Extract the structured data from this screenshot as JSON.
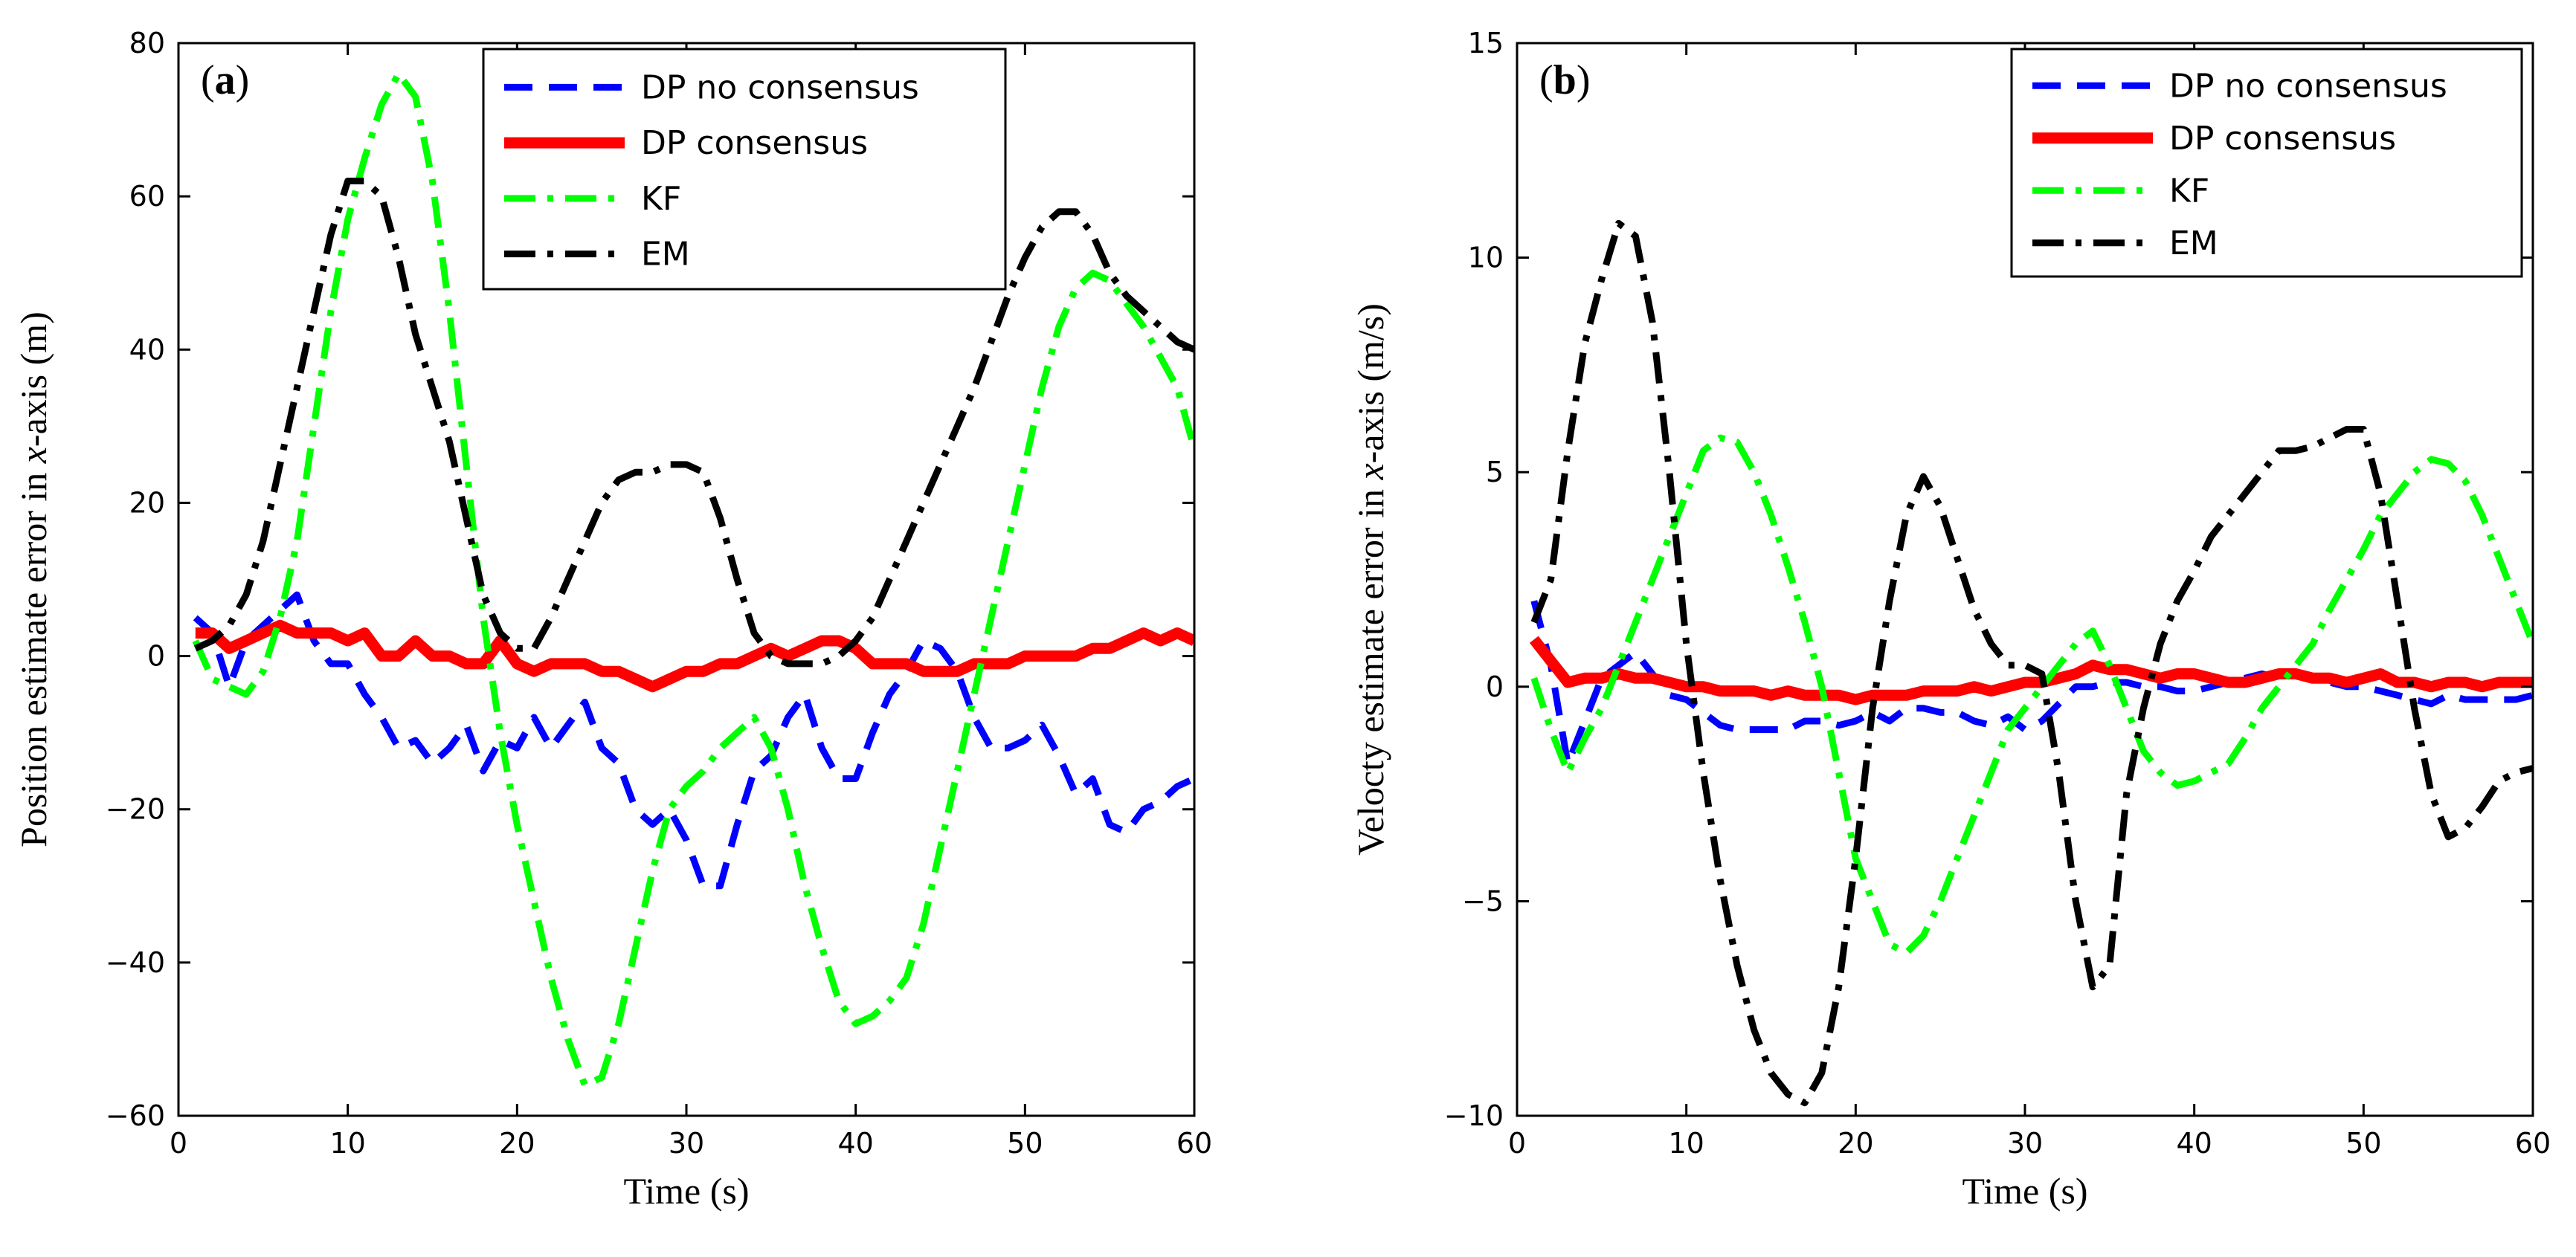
{
  "chart_data": [
    {
      "type": "line",
      "panel_label_prefix": "(",
      "panel_label_letter": "a",
      "panel_label_suffix": ")",
      "xlabel": "Time (s)",
      "ylabel_before": "Position estimate error in ",
      "ylabel_var": "x",
      "ylabel_after": "-axis (m)",
      "xlim": [
        0,
        60
      ],
      "ylim": [
        -60,
        80
      ],
      "xticks": [
        0,
        10,
        20,
        30,
        40,
        50,
        60
      ],
      "yticks": [
        -60,
        -40,
        -20,
        0,
        20,
        40,
        60,
        80
      ],
      "grid": false,
      "legend_position": "top-right",
      "series": [
        {
          "name": "DP no consensus",
          "color": "#0000ff",
          "style": "dashed",
          "x": [
            1,
            2,
            3,
            4,
            5,
            6,
            7,
            8,
            9,
            10,
            11,
            12,
            13,
            14,
            15,
            16,
            17,
            18,
            19,
            20,
            21,
            22,
            23,
            24,
            25,
            26,
            27,
            28,
            29,
            30,
            31,
            32,
            33,
            34,
            35,
            36,
            37,
            38,
            39,
            40,
            41,
            42,
            43,
            44,
            45,
            46,
            47,
            48,
            49,
            50,
            51,
            52,
            53,
            54,
            55,
            56,
            57,
            58,
            59,
            60
          ],
          "values": [
            5,
            3,
            -4,
            2,
            4,
            6,
            8,
            2,
            -1,
            -1,
            -5,
            -8,
            -12,
            -11,
            -14,
            -12,
            -9,
            -15,
            -11,
            -12,
            -8,
            -12,
            -9,
            -6,
            -12,
            -14,
            -20,
            -22,
            -20,
            -24,
            -30,
            -30,
            -22,
            -15,
            -13,
            -8,
            -5,
            -12,
            -16,
            -16,
            -10,
            -5,
            -2,
            2,
            1,
            -2,
            -8,
            -12,
            -12,
            -11,
            -9,
            -13,
            -18,
            -16,
            -22,
            -23,
            -20,
            -19,
            -17,
            -16
          ]
        },
        {
          "name": "DP consensus",
          "color": "#ff0000",
          "style": "solid",
          "x": [
            1,
            2,
            3,
            4,
            5,
            6,
            7,
            8,
            9,
            10,
            11,
            12,
            13,
            14,
            15,
            16,
            17,
            18,
            19,
            20,
            21,
            22,
            23,
            24,
            25,
            26,
            27,
            28,
            29,
            30,
            31,
            32,
            33,
            34,
            35,
            36,
            37,
            38,
            39,
            40,
            41,
            42,
            43,
            44,
            45,
            46,
            47,
            48,
            49,
            50,
            51,
            52,
            53,
            54,
            55,
            56,
            57,
            58,
            59,
            60
          ],
          "values": [
            3,
            3,
            1,
            2,
            3,
            4,
            3,
            3,
            3,
            2,
            3,
            0,
            0,
            2,
            0,
            0,
            -1,
            -1,
            2,
            -1,
            -2,
            -1,
            -1,
            -1,
            -2,
            -2,
            -3,
            -4,
            -3,
            -2,
            -2,
            -1,
            -1,
            0,
            1,
            0,
            1,
            2,
            2,
            1,
            -1,
            -1,
            -1,
            -2,
            -2,
            -2,
            -1,
            -1,
            -1,
            0,
            0,
            0,
            0,
            1,
            1,
            2,
            3,
            2,
            3,
            2
          ]
        },
        {
          "name": "KF",
          "color": "#00ff00",
          "style": "dashdot",
          "x": [
            1,
            2,
            3,
            4,
            5,
            6,
            7,
            8,
            9,
            10,
            11,
            12,
            13,
            14,
            15,
            16,
            17,
            18,
            19,
            20,
            21,
            22,
            23,
            24,
            25,
            26,
            27,
            28,
            29,
            30,
            31,
            32,
            33,
            34,
            35,
            36,
            37,
            38,
            39,
            40,
            41,
            42,
            43,
            44,
            45,
            46,
            47,
            48,
            49,
            50,
            51,
            52,
            53,
            54,
            55,
            56,
            57,
            58,
            59,
            60
          ],
          "values": [
            2,
            -3,
            -4,
            -5,
            -2,
            5,
            15,
            30,
            45,
            57,
            65,
            72,
            76,
            73,
            62,
            45,
            25,
            5,
            -10,
            -22,
            -32,
            -42,
            -50,
            -56,
            -55,
            -48,
            -38,
            -28,
            -20,
            -17,
            -15,
            -12,
            -10,
            -8,
            -12,
            -20,
            -30,
            -38,
            -45,
            -48,
            -47,
            -45,
            -42,
            -35,
            -25,
            -15,
            -5,
            5,
            15,
            25,
            35,
            43,
            48,
            50,
            49,
            46,
            43,
            39,
            35,
            27
          ]
        },
        {
          "name": "EM",
          "color": "#000000",
          "style": "dashdot",
          "x": [
            1,
            2,
            3,
            4,
            5,
            6,
            7,
            8,
            9,
            10,
            11,
            12,
            13,
            14,
            15,
            16,
            17,
            18,
            19,
            20,
            21,
            22,
            23,
            24,
            25,
            26,
            27,
            28,
            29,
            30,
            31,
            32,
            33,
            34,
            35,
            36,
            37,
            38,
            39,
            40,
            41,
            42,
            43,
            44,
            45,
            46,
            47,
            48,
            49,
            50,
            51,
            52,
            53,
            54,
            55,
            56,
            57,
            58,
            59,
            60
          ],
          "values": [
            1,
            2,
            4,
            8,
            15,
            25,
            35,
            45,
            55,
            62,
            62,
            60,
            52,
            42,
            35,
            28,
            18,
            8,
            3,
            1,
            1,
            5,
            10,
            15,
            20,
            23,
            24,
            24,
            25,
            25,
            24,
            18,
            10,
            3,
            0,
            -1,
            -1,
            -1,
            0,
            2,
            5,
            10,
            15,
            20,
            25,
            30,
            35,
            41,
            47,
            52,
            56,
            58,
            58,
            55,
            50,
            47,
            45,
            43,
            41,
            40
          ]
        }
      ]
    },
    {
      "type": "line",
      "panel_label_prefix": "(",
      "panel_label_letter": "b",
      "panel_label_suffix": ")",
      "xlabel": "Time (s)",
      "ylabel_before": "Velocty estimate error in ",
      "ylabel_var": "x",
      "ylabel_after": "-axis (m/s)",
      "xlim": [
        0,
        60
      ],
      "ylim": [
        -10,
        15
      ],
      "xticks": [
        0,
        10,
        20,
        30,
        40,
        50,
        60
      ],
      "yticks": [
        -10,
        -5,
        0,
        5,
        10,
        15
      ],
      "grid": false,
      "legend_position": "top-right",
      "series": [
        {
          "name": "DP no consensus",
          "color": "#0000ff",
          "style": "dashed",
          "x": [
            1,
            2,
            3,
            4,
            5,
            6,
            7,
            8,
            9,
            10,
            11,
            12,
            13,
            14,
            15,
            16,
            17,
            18,
            19,
            20,
            21,
            22,
            23,
            24,
            25,
            26,
            27,
            28,
            29,
            30,
            31,
            32,
            33,
            34,
            35,
            36,
            37,
            38,
            39,
            40,
            41,
            42,
            43,
            44,
            45,
            46,
            47,
            48,
            49,
            50,
            51,
            52,
            53,
            54,
            55,
            56,
            57,
            58,
            59,
            60
          ],
          "values": [
            2,
            0.5,
            -1.8,
            -0.8,
            0.2,
            0.5,
            0.8,
            0.3,
            -0.2,
            -0.3,
            -0.6,
            -0.9,
            -1.0,
            -1.0,
            -1.0,
            -1.0,
            -0.8,
            -0.8,
            -0.9,
            -0.8,
            -0.6,
            -0.8,
            -0.5,
            -0.5,
            -0.6,
            -0.6,
            -0.8,
            -0.9,
            -0.7,
            -1.0,
            -0.8,
            -0.4,
            0,
            0,
            0.1,
            0.1,
            0,
            0,
            -0.1,
            -0.1,
            0,
            0.1,
            0.2,
            0.3,
            0.2,
            0.3,
            0.2,
            0.1,
            0,
            0,
            -0.1,
            -0.2,
            -0.3,
            -0.4,
            -0.2,
            -0.3,
            -0.3,
            -0.3,
            -0.3,
            -0.2
          ]
        },
        {
          "name": "DP consensus",
          "color": "#ff0000",
          "style": "solid",
          "x": [
            1,
            2,
            3,
            4,
            5,
            6,
            7,
            8,
            9,
            10,
            11,
            12,
            13,
            14,
            15,
            16,
            17,
            18,
            19,
            20,
            21,
            22,
            23,
            24,
            25,
            26,
            27,
            28,
            29,
            30,
            31,
            32,
            33,
            34,
            35,
            36,
            37,
            38,
            39,
            40,
            41,
            42,
            43,
            44,
            45,
            46,
            47,
            48,
            49,
            50,
            51,
            52,
            53,
            54,
            55,
            56,
            57,
            58,
            59,
            60
          ],
          "values": [
            1.1,
            0.6,
            0.1,
            0.2,
            0.2,
            0.3,
            0.2,
            0.2,
            0.1,
            0,
            0,
            -0.1,
            -0.1,
            -0.1,
            -0.2,
            -0.1,
            -0.2,
            -0.2,
            -0.2,
            -0.3,
            -0.2,
            -0.2,
            -0.2,
            -0.1,
            -0.1,
            -0.1,
            0,
            -0.1,
            0,
            0.1,
            0.1,
            0.2,
            0.3,
            0.5,
            0.4,
            0.4,
            0.3,
            0.2,
            0.3,
            0.3,
            0.2,
            0.1,
            0.1,
            0.2,
            0.3,
            0.3,
            0.2,
            0.2,
            0.1,
            0.2,
            0.3,
            0.1,
            0.1,
            0,
            0.1,
            0.1,
            0,
            0.1,
            0.1,
            0.1
          ]
        },
        {
          "name": "KF",
          "color": "#00ff00",
          "style": "dashdot",
          "x": [
            1,
            2,
            3,
            4,
            5,
            6,
            7,
            8,
            9,
            10,
            11,
            12,
            13,
            14,
            15,
            16,
            17,
            18,
            19,
            20,
            21,
            22,
            23,
            24,
            25,
            26,
            27,
            28,
            29,
            30,
            31,
            32,
            33,
            34,
            35,
            36,
            37,
            38,
            39,
            40,
            41,
            42,
            43,
            44,
            45,
            46,
            47,
            48,
            49,
            50,
            51,
            52,
            53,
            54,
            55,
            56,
            57,
            58,
            59,
            60
          ],
          "values": [
            0.2,
            -1.0,
            -2.0,
            -1.2,
            -0.5,
            0.5,
            1.5,
            2.5,
            3.5,
            4.5,
            5.5,
            5.8,
            5.7,
            5.0,
            4.0,
            2.8,
            1.5,
            0,
            -2.0,
            -4.0,
            -5.0,
            -6.0,
            -6.2,
            -5.8,
            -5.0,
            -4.0,
            -3.0,
            -2.0,
            -1.0,
            -0.5,
            0,
            0.5,
            1.0,
            1.3,
            0.5,
            -0.5,
            -1.5,
            -2.0,
            -2.3,
            -2.2,
            -2.0,
            -1.8,
            -1.2,
            -0.5,
            0,
            0.5,
            1.0,
            1.8,
            2.5,
            3.2,
            4.0,
            4.5,
            5.0,
            5.3,
            5.2,
            4.8,
            4.0,
            3.0,
            2.0,
            1.0
          ]
        },
        {
          "name": "EM",
          "color": "#000000",
          "style": "dashdot",
          "x": [
            1,
            2,
            3,
            4,
            5,
            6,
            7,
            8,
            9,
            10,
            11,
            12,
            13,
            14,
            15,
            16,
            17,
            18,
            19,
            20,
            21,
            22,
            23,
            24,
            25,
            26,
            27,
            28,
            29,
            30,
            31,
            32,
            33,
            34,
            35,
            36,
            37,
            38,
            39,
            40,
            41,
            42,
            43,
            44,
            45,
            46,
            47,
            48,
            49,
            50,
            51,
            52,
            53,
            54,
            55,
            56,
            57,
            58,
            59,
            60
          ],
          "values": [
            1.5,
            2.5,
            5.5,
            8.0,
            9.5,
            10.8,
            10.5,
            8.5,
            5.0,
            1.0,
            -2.0,
            -4.5,
            -6.5,
            -8.0,
            -9.0,
            -9.5,
            -9.7,
            -9.0,
            -7.0,
            -4.0,
            -0.5,
            2.0,
            4.0,
            4.9,
            4.2,
            3.0,
            1.8,
            1.0,
            0.5,
            0.5,
            0.3,
            -2.0,
            -5.0,
            -7.0,
            -6.5,
            -2.5,
            -0.5,
            1.0,
            2.0,
            2.7,
            3.5,
            4.0,
            4.5,
            5.0,
            5.5,
            5.5,
            5.6,
            5.8,
            6.0,
            6.0,
            4.5,
            2.0,
            -0.5,
            -2.5,
            -3.5,
            -3.3,
            -2.8,
            -2.2,
            -2.0,
            -1.9
          ]
        }
      ]
    }
  ]
}
